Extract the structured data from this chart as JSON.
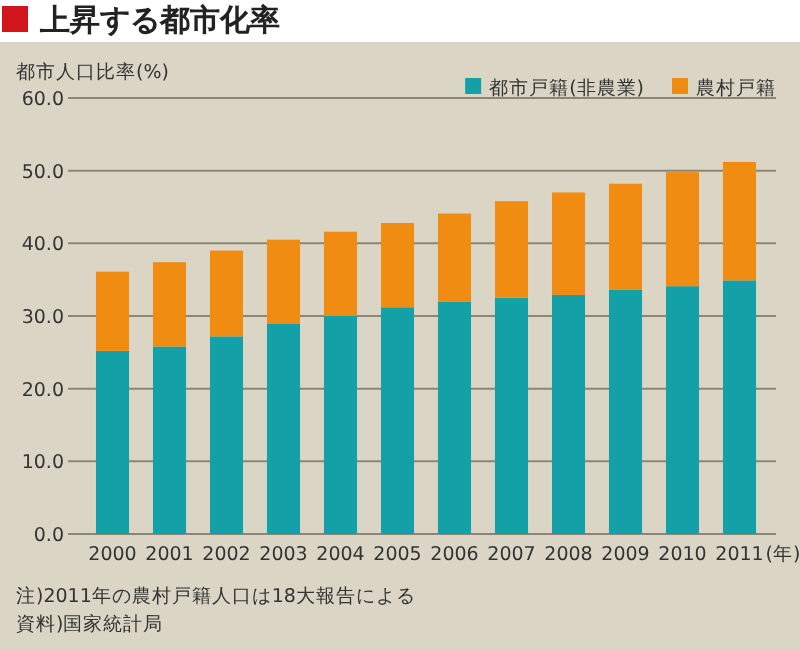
{
  "chart_data": {
    "type": "bar",
    "title": "上昇する都市化率",
    "ylabel": "都市人口比率(%)",
    "xlabel": "(年)",
    "categories": [
      "2000",
      "2001",
      "2002",
      "2003",
      "2004",
      "2005",
      "2006",
      "2007",
      "2008",
      "2009",
      "2010",
      "2011"
    ],
    "series": [
      {
        "name": "都市戸籍(非農業)",
        "color": "#13a0a6",
        "values": [
          25.2,
          25.8,
          27.2,
          28.9,
          30.0,
          31.2,
          32.0,
          32.5,
          32.9,
          33.6,
          34.1,
          34.9
        ]
      },
      {
        "name": "農村戸籍",
        "color": "#f08c12",
        "values": [
          10.9,
          11.6,
          11.8,
          11.6,
          11.6,
          11.6,
          12.1,
          13.3,
          14.1,
          14.6,
          15.7,
          16.3
        ]
      }
    ],
    "stacked": true,
    "ylim": [
      0,
      60
    ],
    "yticks": [
      {
        "value": 0,
        "label": "0.0"
      },
      {
        "value": 10,
        "label": "10.0"
      },
      {
        "value": 20,
        "label": "20.0"
      },
      {
        "value": 30,
        "label": "30.0"
      },
      {
        "value": 40,
        "label": "40.0"
      },
      {
        "value": 50,
        "label": "50.0"
      },
      {
        "value": 60,
        "label": "60.0"
      }
    ],
    "grid": "y",
    "legend": "top right",
    "annotations": [
      "注)2011年の農村戸籍人口は18大報告による",
      "資料)国家統計局"
    ]
  }
}
